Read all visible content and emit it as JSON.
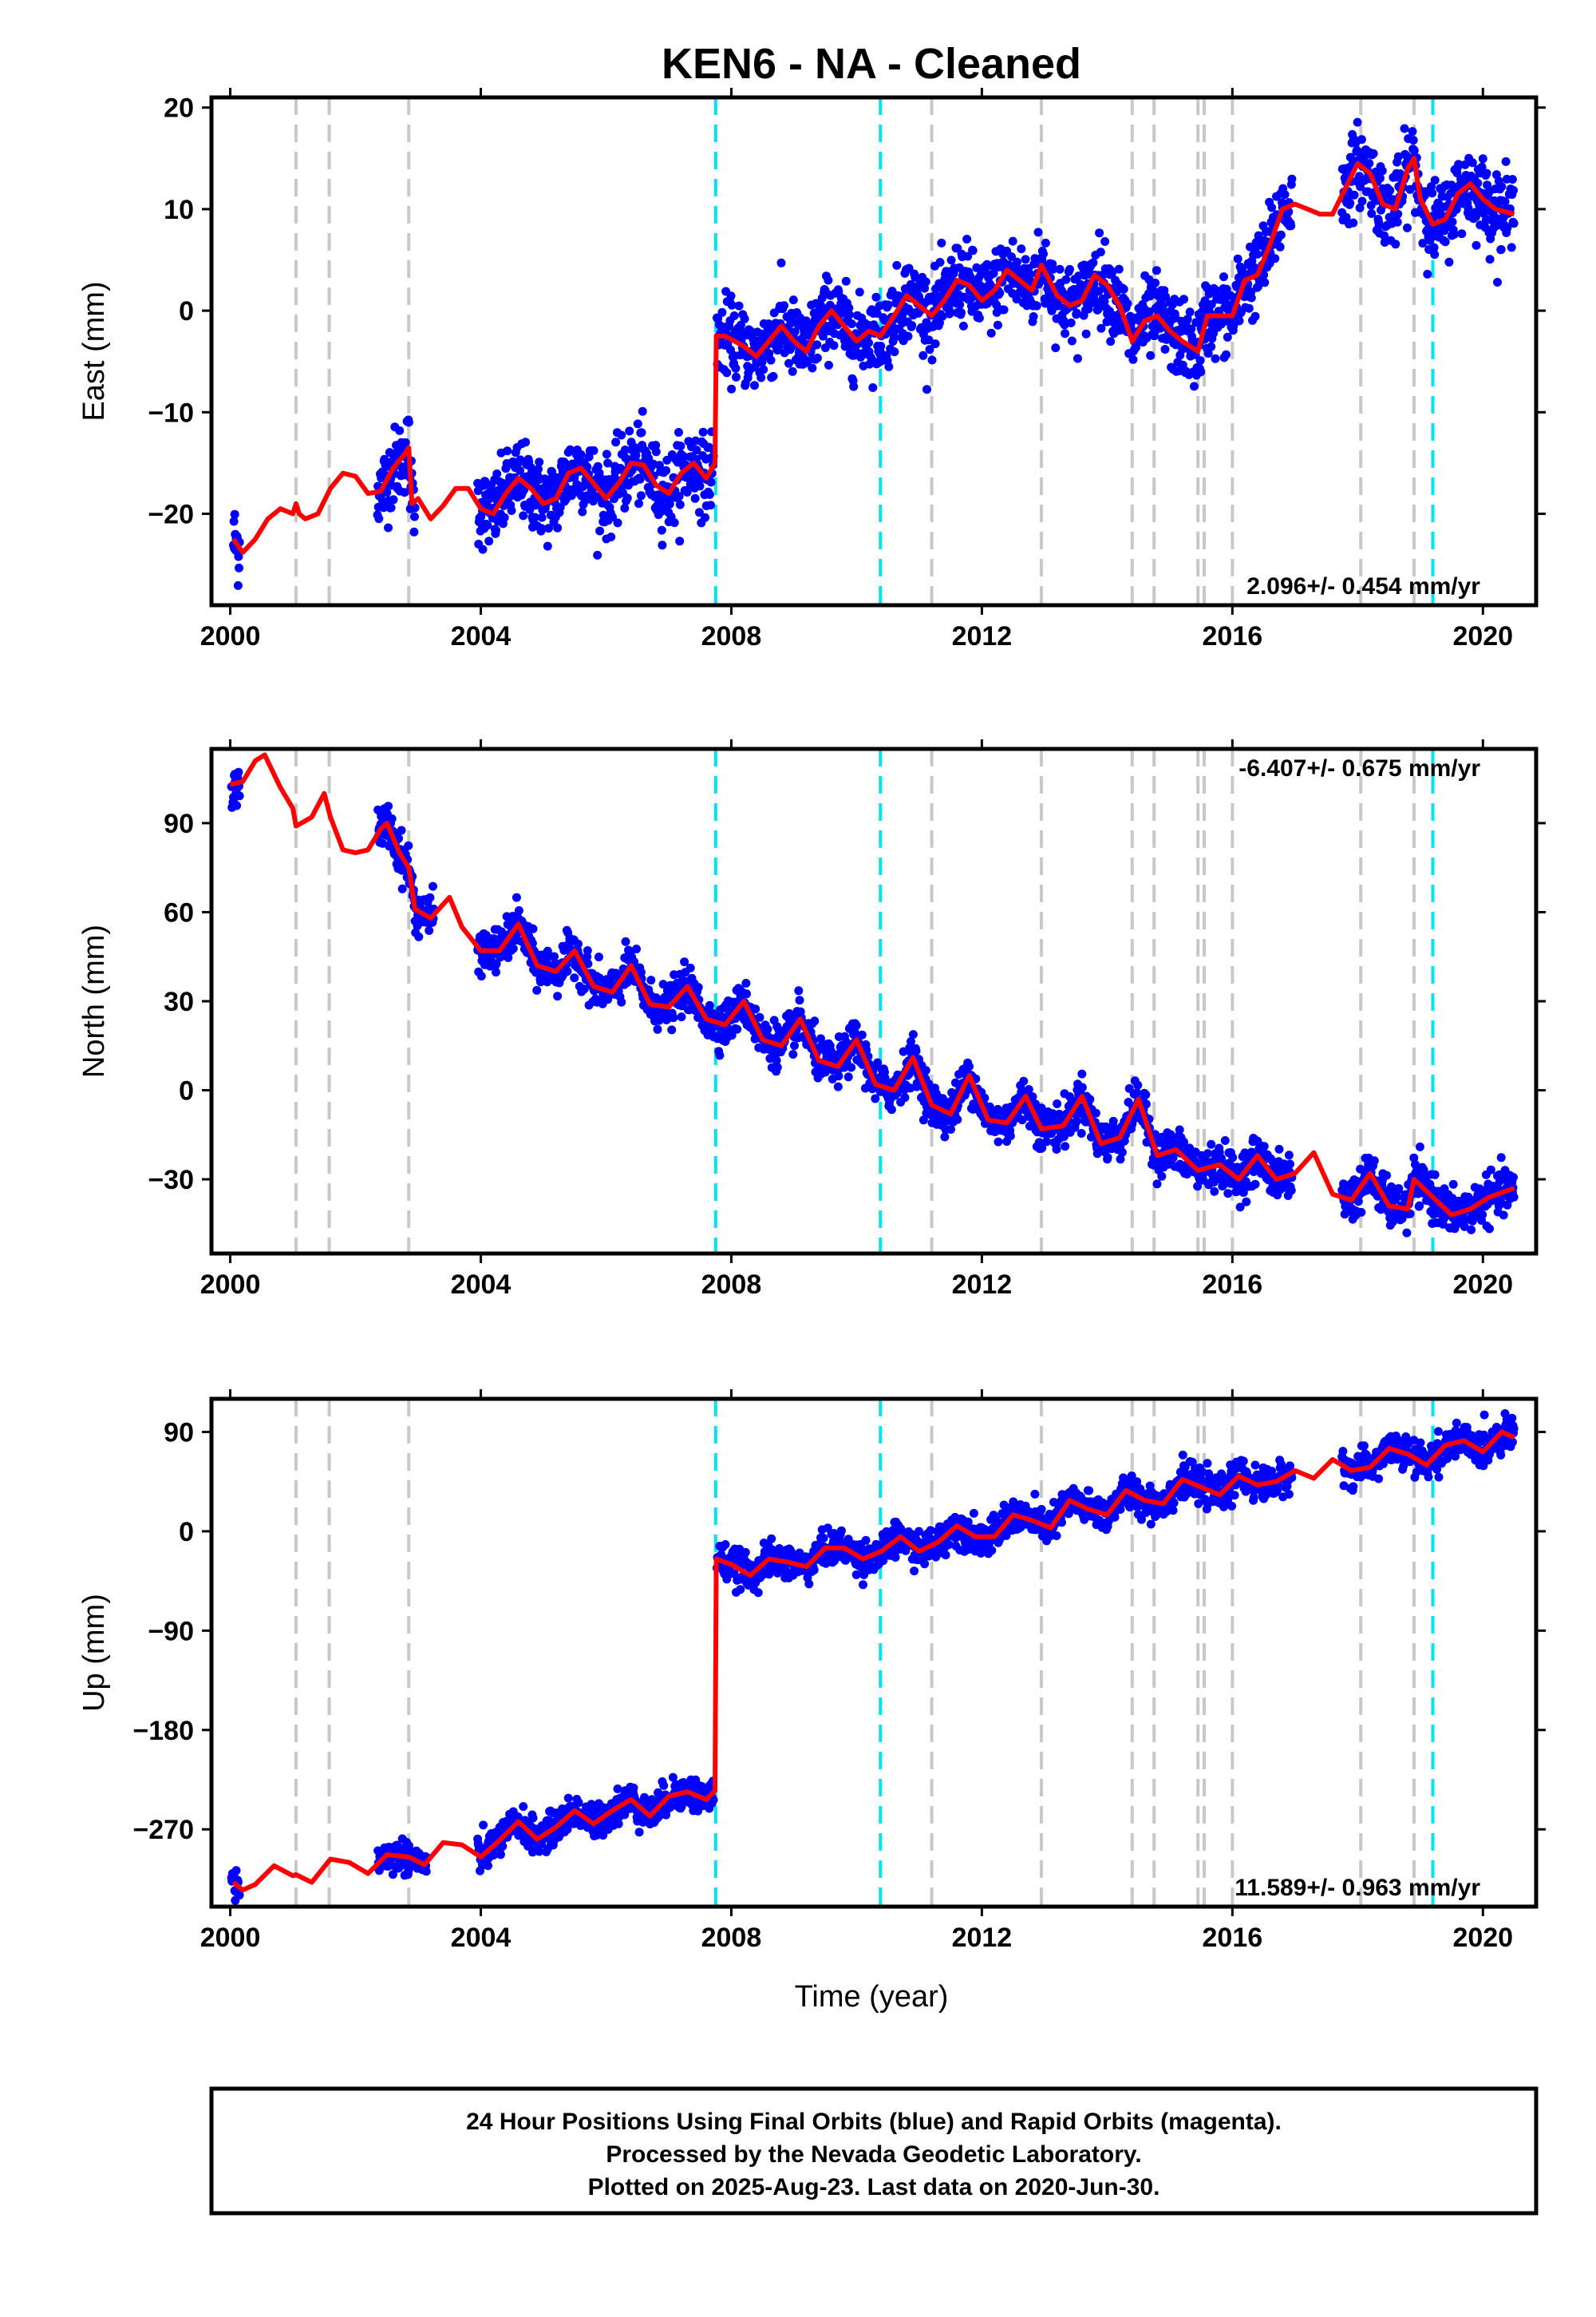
{
  "title": "KEN6  - NA - Cleaned",
  "x_axis_label": "Time (year)",
  "colors": {
    "final_orbits": "#0000ff",
    "model_fit": "#ff0000",
    "equipment_change": "#c8c8c8",
    "earthquake": "#00e5ee",
    "frame": "#000000"
  },
  "footer": {
    "line1": "24 Hour Positions Using Final Orbits (blue) and Rapid Orbits (magenta).",
    "line2": "Processed by the Nevada Geodetic Laboratory.",
    "line3": "Plotted on 2025-Aug-23. Last data on 2020-Jun-30."
  },
  "chart_data": [
    {
      "type": "scatter",
      "component": "East",
      "ylabel": "East (mm)",
      "rate_label": "2.096+/- 0.454 mm/yr",
      "rate_position": "bottom-right",
      "xlim": [
        1999.7,
        2020.85
      ],
      "ylim": [
        -29,
        21
      ],
      "x_ticks": [
        2000,
        2004,
        2008,
        2012,
        2016,
        2020
      ],
      "y_ticks": [
        -20,
        -10,
        0,
        10,
        20
      ],
      "y_tick_labels": [
        "−20",
        "−10",
        "0",
        "10",
        "20"
      ],
      "grey_dashed_lines_x": [
        2001.05,
        2001.58,
        2002.85,
        2014.4,
        2014.75,
        2015.45,
        2015.55,
        2016.0,
        2018.05,
        2018.9
      ],
      "grey_dashed_lines_x2": [
        2011.2,
        2012.95
      ],
      "cyan_dashed_lines_x": [
        2007.75,
        2010.38,
        2019.2
      ],
      "model_fit": {
        "x": [
          2000.05,
          2000.2,
          2000.4,
          2000.6,
          2000.8,
          2001.0,
          2001.05,
          2001.1,
          2001.2,
          2001.4,
          2001.6,
          2001.8,
          2002.0,
          2002.2,
          2002.4,
          2002.6,
          2002.8,
          2002.85,
          2002.9,
          2003.0,
          2003.2,
          2003.4,
          2003.6,
          2003.8,
          2004.0,
          2004.2,
          2004.4,
          2004.6,
          2004.8,
          2005.0,
          2005.2,
          2005.4,
          2005.6,
          2005.8,
          2006.0,
          2006.2,
          2006.4,
          2006.6,
          2006.8,
          2007.0,
          2007.2,
          2007.4,
          2007.6,
          2007.74,
          2007.76,
          2007.9,
          2008.2,
          2008.4,
          2008.6,
          2008.8,
          2009.0,
          2009.2,
          2009.4,
          2009.6,
          2009.8,
          2010.0,
          2010.2,
          2010.38,
          2010.6,
          2010.8,
          2011.0,
          2011.2,
          2011.4,
          2011.6,
          2011.8,
          2012.0,
          2012.2,
          2012.4,
          2012.6,
          2012.8,
          2012.95,
          2013.2,
          2013.4,
          2013.6,
          2013.8,
          2014.0,
          2014.2,
          2014.4,
          2014.6,
          2014.8,
          2015.0,
          2015.2,
          2015.45,
          2015.6,
          2015.8,
          2016.0,
          2016.2,
          2016.4,
          2016.6,
          2016.8,
          2017.0,
          2017.2,
          2017.4,
          2017.6,
          2017.8,
          2018.0,
          2018.2,
          2018.4,
          2018.6,
          2018.8,
          2018.9,
          2019.0,
          2019.2,
          2019.4,
          2019.6,
          2019.8,
          2020.0,
          2020.2,
          2020.5
        ],
        "y": [
          -22.5,
          -23.8,
          -22.5,
          -20.5,
          -19.5,
          -20.0,
          -19.0,
          -20.0,
          -20.5,
          -20.0,
          -17.5,
          -16.0,
          -16.3,
          -18.0,
          -17.8,
          -15.5,
          -14.0,
          -13.5,
          -19.0,
          -18.5,
          -20.5,
          -19.2,
          -17.5,
          -17.5,
          -19.5,
          -20.0,
          -18.0,
          -16.5,
          -17.5,
          -19.0,
          -18.5,
          -16.0,
          -15.5,
          -17.0,
          -18.5,
          -17.0,
          -15.0,
          -15.2,
          -17.2,
          -18.0,
          -16.0,
          -15.0,
          -16.5,
          -15.0,
          -2.5,
          -2.5,
          -3.5,
          -4.5,
          -3.0,
          -1.5,
          -3.0,
          -4.0,
          -1.5,
          0.0,
          -1.5,
          -3.0,
          -2.0,
          -2.5,
          -0.5,
          1.5,
          0.5,
          -0.5,
          1.0,
          3.0,
          2.5,
          1.0,
          2.0,
          4.0,
          3.0,
          2.0,
          4.5,
          1.5,
          0.5,
          1.0,
          3.5,
          2.5,
          0.5,
          -3.0,
          -1.0,
          -0.5,
          -2.0,
          -3.0,
          -4.0,
          -0.5,
          -0.5,
          -0.5,
          3.0,
          3.5,
          6.5,
          10.0,
          10.5,
          10.0,
          9.5,
          9.5,
          12.0,
          14.5,
          13.5,
          10.5,
          10.0,
          14.0,
          15.0,
          11.0,
          8.5,
          9.0,
          11.5,
          12.5,
          11.0,
          10.0,
          9.5
        ]
      }
    },
    {
      "type": "scatter",
      "component": "North",
      "ylabel": "North (mm)",
      "rate_label": "-6.407+/- 0.675 mm/yr",
      "rate_position": "top-right",
      "xlim": [
        1999.7,
        2020.85
      ],
      "ylim": [
        -55,
        115
      ],
      "x_ticks": [
        2000,
        2004,
        2008,
        2012,
        2016,
        2020
      ],
      "y_ticks": [
        -30,
        0,
        30,
        60,
        90
      ],
      "y_tick_labels": [
        "−30",
        "0",
        "30",
        "60",
        "90"
      ],
      "grey_dashed_lines_x": [
        2001.05,
        2001.58,
        2002.85,
        2011.2,
        2012.95,
        2014.4,
        2014.75,
        2015.45,
        2015.55,
        2016.0,
        2018.05,
        2018.9
      ],
      "cyan_dashed_lines_x": [
        2007.75,
        2010.38,
        2019.2
      ],
      "model_fit": {
        "x": [
          2000.0,
          2000.2,
          2000.4,
          2000.55,
          2000.8,
          2001.0,
          2001.05,
          2001.3,
          2001.5,
          2001.6,
          2001.8,
          2002.0,
          2002.2,
          2002.4,
          2002.5,
          2002.7,
          2002.85,
          2002.95,
          2003.2,
          2003.5,
          2003.7,
          2004.0,
          2004.3,
          2004.6,
          2004.9,
          2005.2,
          2005.5,
          2005.8,
          2006.1,
          2006.4,
          2006.7,
          2007.0,
          2007.3,
          2007.6,
          2007.9,
          2008.2,
          2008.5,
          2008.8,
          2009.1,
          2009.4,
          2009.7,
          2010.0,
          2010.3,
          2010.6,
          2010.9,
          2011.2,
          2011.5,
          2011.8,
          2012.1,
          2012.4,
          2012.7,
          2012.95,
          2013.3,
          2013.6,
          2013.9,
          2014.2,
          2014.5,
          2014.8,
          2015.1,
          2015.45,
          2015.8,
          2016.1,
          2016.4,
          2016.7,
          2017.0,
          2017.3,
          2017.6,
          2017.9,
          2018.2,
          2018.5,
          2018.8,
          2018.9,
          2019.2,
          2019.5,
          2019.8,
          2020.1,
          2020.5
        ],
        "y": [
          103.0,
          104.0,
          111.0,
          113.0,
          102.0,
          95.0,
          89.0,
          92.0,
          100.0,
          92.0,
          81.0,
          80.0,
          81.0,
          88.0,
          90.0,
          80.0,
          75.0,
          61.0,
          58.0,
          65.0,
          55.0,
          47.0,
          47.0,
          56.0,
          42.0,
          40.0,
          47.0,
          35.0,
          33.0,
          42.0,
          29.0,
          28.0,
          35.0,
          24.0,
          22.0,
          30.0,
          17.0,
          15.0,
          24.0,
          10.0,
          8.0,
          17.0,
          2.0,
          0.0,
          11.0,
          -5.0,
          -8.0,
          5.0,
          -10.0,
          -11.0,
          -2.0,
          -13.0,
          -12.0,
          -2.0,
          -18.0,
          -16.0,
          -3.0,
          -22.0,
          -20.0,
          -27.0,
          -25.0,
          -30.0,
          -22.0,
          -30.0,
          -28.0,
          -21.0,
          -35.0,
          -37.0,
          -28.0,
          -39.0,
          -40.0,
          -30.0,
          -36.0,
          -42.0,
          -40.0,
          -36.0,
          -33.0
        ]
      }
    },
    {
      "type": "scatter",
      "component": "Up",
      "ylabel": "Up (mm)",
      "rate_label": "11.589+/- 0.963 mm/yr",
      "rate_position": "bottom-right",
      "xlim": [
        1999.7,
        2020.85
      ],
      "ylim": [
        -340,
        120
      ],
      "x_ticks": [
        2000,
        2004,
        2008,
        2012,
        2016,
        2020
      ],
      "y_ticks": [
        -270,
        -180,
        -90,
        0,
        90
      ],
      "y_tick_labels": [
        "−270",
        "−180",
        "−90",
        "0",
        "90"
      ],
      "grey_dashed_lines_x": [
        2001.05,
        2001.58,
        2002.85,
        2011.2,
        2012.95,
        2014.4,
        2014.75,
        2015.45,
        2015.55,
        2016.0,
        2018.05,
        2018.9
      ],
      "cyan_dashed_lines_x": [
        2007.75,
        2010.38,
        2019.2
      ],
      "model_fit": {
        "x": [
          2000.05,
          2000.2,
          2000.4,
          2000.7,
          2001.0,
          2001.05,
          2001.3,
          2001.6,
          2001.9,
          2002.2,
          2002.5,
          2002.85,
          2003.1,
          2003.4,
          2003.7,
          2004.0,
          2004.3,
          2004.6,
          2004.9,
          2005.2,
          2005.5,
          2005.8,
          2006.1,
          2006.4,
          2006.7,
          2007.0,
          2007.3,
          2007.6,
          2007.74,
          2007.76,
          2008.0,
          2008.3,
          2008.6,
          2008.9,
          2009.2,
          2009.5,
          2009.8,
          2010.1,
          2010.4,
          2010.7,
          2011.0,
          2011.3,
          2011.6,
          2011.9,
          2012.2,
          2012.5,
          2012.8,
          2013.1,
          2013.4,
          2013.7,
          2014.0,
          2014.3,
          2014.6,
          2014.9,
          2015.2,
          2015.5,
          2015.8,
          2016.1,
          2016.4,
          2016.7,
          2017.0,
          2017.3,
          2017.6,
          2017.9,
          2018.2,
          2018.5,
          2018.8,
          2019.1,
          2019.4,
          2019.7,
          2020.0,
          2020.3,
          2020.5
        ],
        "y": [
          -318.0,
          -325.0,
          -320.0,
          -303.0,
          -312.0,
          -311.0,
          -318.0,
          -297.0,
          -300.0,
          -310.0,
          -293.0,
          -295.0,
          -302.0,
          -282.0,
          -284.0,
          -295.0,
          -280.0,
          -263.0,
          -279.0,
          -268.0,
          -253.0,
          -265.0,
          -253.0,
          -243.0,
          -258.0,
          -240.0,
          -236.0,
          -243.0,
          -235.0,
          -25.0,
          -30.0,
          -40.0,
          -25.0,
          -28.0,
          -32.0,
          -15.0,
          -15.0,
          -25.0,
          -18.0,
          -5.0,
          -18.0,
          -10.0,
          5.0,
          -5.0,
          -5.0,
          15.0,
          10.0,
          3.0,
          28.0,
          20.0,
          15.0,
          37.0,
          28.0,
          25.0,
          47.0,
          40.0,
          33.0,
          50.0,
          42.0,
          45.0,
          55.0,
          48.0,
          65.0,
          55.0,
          58.0,
          75.0,
          70.0,
          60.0,
          78.0,
          82.0,
          72.0,
          90.0,
          85.0
        ]
      }
    }
  ]
}
